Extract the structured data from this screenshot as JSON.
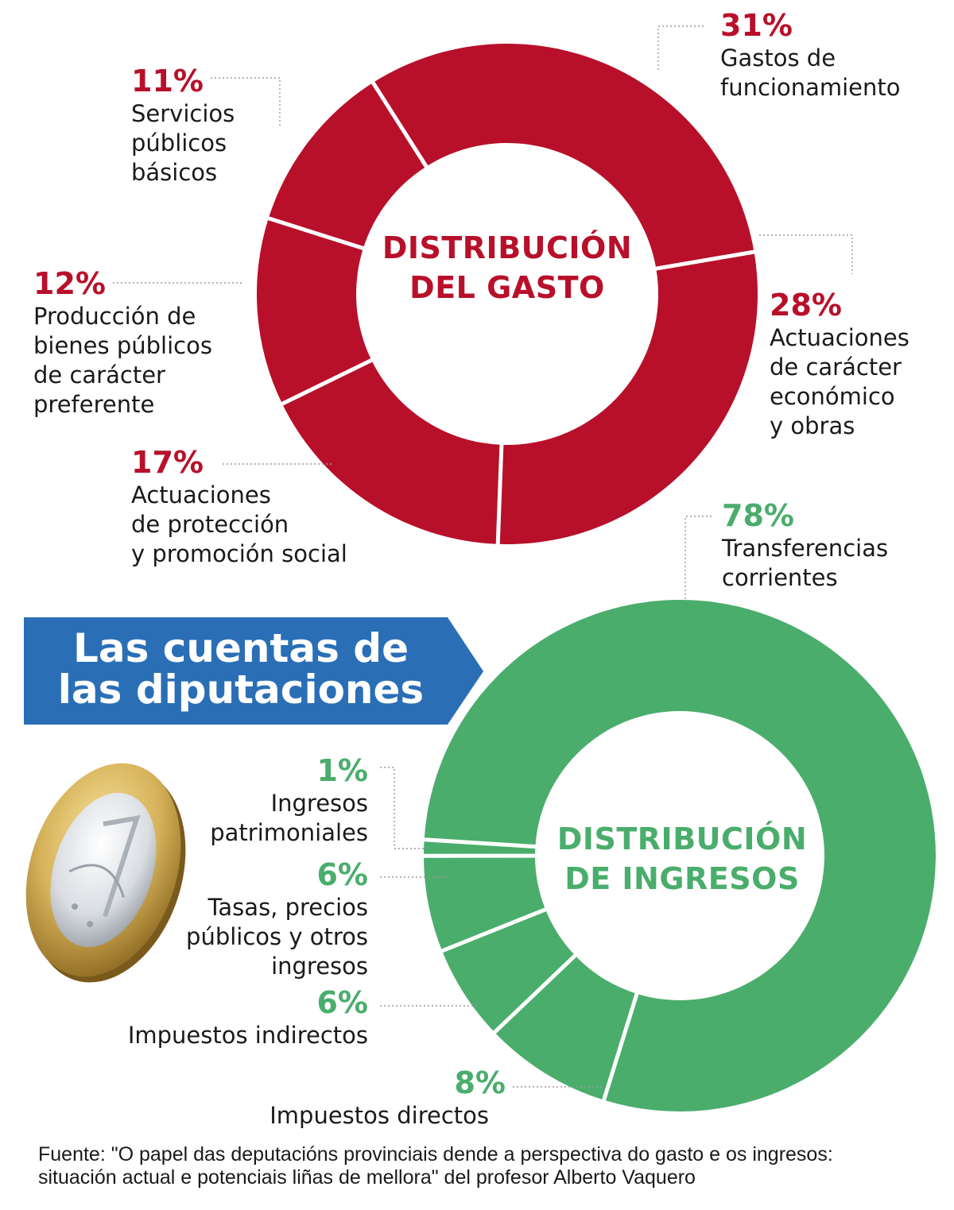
{
  "colors": {
    "gasto": "#b8102a",
    "ingresos": "#4aad6c",
    "banner": "#2a6fb6",
    "separator": "#ffffff"
  },
  "banner": {
    "line1": "Las cuentas de",
    "line2": "las diputaciones"
  },
  "coin_icon": "euro-coin-icon",
  "source": {
    "line1": "Fuente:  \"O papel das deputacións provinciais dende a perspectiva do gasto e os ingresos:",
    "line2": "situación actual e potenciais liñas de mellora\" del profesor Alberto Vaquero"
  },
  "chart_data": [
    {
      "type": "donut",
      "title_lines": [
        "DISTRIBUCIÓN",
        "DEL GASTO"
      ],
      "unit": "%",
      "slices": [
        {
          "value": 31,
          "pct_label": "31%",
          "label_lines": [
            "Gastos de",
            "funcionamiento"
          ]
        },
        {
          "value": 28,
          "pct_label": "28%",
          "label_lines": [
            "Actuaciones",
            "de carácter",
            "económico",
            "y obras"
          ]
        },
        {
          "value": 17,
          "pct_label": "17%",
          "label_lines": [
            "Actuaciones",
            "de protección",
            "y promoción social"
          ]
        },
        {
          "value": 12,
          "pct_label": "12%",
          "label_lines": [
            "Producción de",
            "bienes públicos",
            "de carácter",
            "preferente"
          ]
        },
        {
          "value": 11,
          "pct_label": "11%",
          "label_lines": [
            "Servicios",
            "públicos",
            "básicos"
          ]
        }
      ]
    },
    {
      "type": "donut",
      "title_lines": [
        "DISTRIBUCIÓN",
        "DE INGRESOS"
      ],
      "unit": "%",
      "slices": [
        {
          "value": 78,
          "pct_label": "78%",
          "label_lines": [
            "Transferencias",
            "corrientes"
          ]
        },
        {
          "value": 8,
          "pct_label": "8%",
          "label_lines": [
            "Impuestos directos"
          ]
        },
        {
          "value": 6,
          "pct_label": "6%",
          "label_lines": [
            "Impuestos indirectos"
          ]
        },
        {
          "value": 6,
          "pct_label": "6%",
          "label_lines": [
            "Tasas, precios",
            "públicos y otros",
            "ingresos"
          ]
        },
        {
          "value": 1,
          "pct_label": "1%",
          "label_lines": [
            "Ingresos",
            "patrimoniales"
          ]
        }
      ]
    }
  ]
}
